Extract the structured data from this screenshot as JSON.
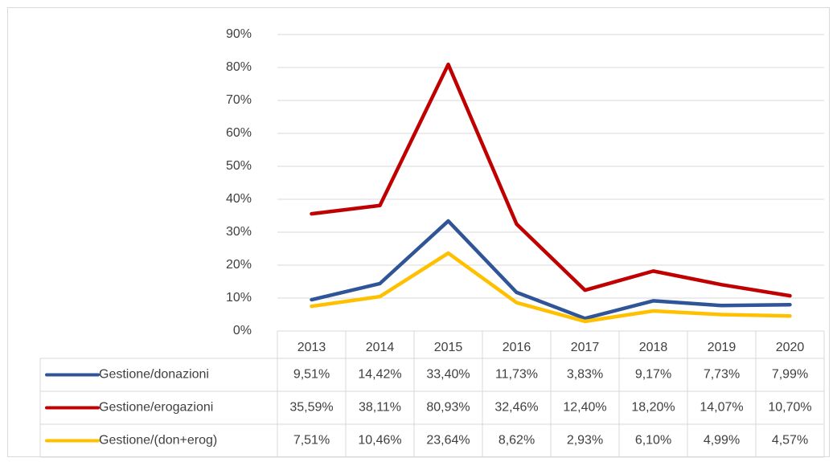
{
  "chart_data": {
    "type": "line",
    "categories": [
      "2013",
      "2014",
      "2015",
      "2016",
      "2017",
      "2018",
      "2019",
      "2020"
    ],
    "series": [
      {
        "name": "Gestione/donazioni",
        "color": "#2f5597",
        "values": [
          9.51,
          14.42,
          33.4,
          11.73,
          3.83,
          9.17,
          7.73,
          7.99
        ],
        "value_labels": [
          "9,51%",
          "14,42%",
          "33,40%",
          "11,73%",
          "3,83%",
          "9,17%",
          "7,73%",
          "7,99%"
        ]
      },
      {
        "name": "Gestione/erogazioni",
        "color": "#c00000",
        "values": [
          35.59,
          38.11,
          80.93,
          32.46,
          12.4,
          18.2,
          14.07,
          10.7
        ],
        "value_labels": [
          "35,59%",
          "38,11%",
          "80,93%",
          "32,46%",
          "12,40%",
          "18,20%",
          "14,07%",
          "10,70%"
        ]
      },
      {
        "name": "Gestione/(don+erog)",
        "color": "#ffc000",
        "values": [
          7.51,
          10.46,
          23.64,
          8.62,
          2.93,
          6.1,
          4.99,
          4.57
        ],
        "value_labels": [
          "7,51%",
          "10,46%",
          "23,64%",
          "8,62%",
          "2,93%",
          "6,10%",
          "4,99%",
          "4,57%"
        ]
      }
    ],
    "ylim": [
      0,
      90
    ],
    "yticks": [
      {
        "value": 0,
        "label": "0%"
      },
      {
        "value": 10,
        "label": "10%"
      },
      {
        "value": 20,
        "label": "20%"
      },
      {
        "value": 30,
        "label": "30%"
      },
      {
        "value": 40,
        "label": "40%"
      },
      {
        "value": 50,
        "label": "50%"
      },
      {
        "value": 60,
        "label": "60%"
      },
      {
        "value": 70,
        "label": "70%"
      },
      {
        "value": 80,
        "label": "80%"
      },
      {
        "value": 90,
        "label": "90%"
      }
    ],
    "grid": true,
    "legend": "table"
  }
}
